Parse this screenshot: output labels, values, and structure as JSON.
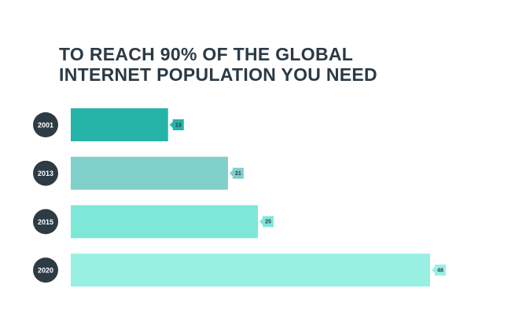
{
  "chart_data": {
    "type": "bar",
    "orientation": "horizontal",
    "title": [
      "TO REACH 90% OF THE GLOBAL",
      "INTERNET POPULATION YOU NEED"
    ],
    "categories": [
      "2001",
      "2013",
      "2015",
      "2020"
    ],
    "values": [
      13,
      21,
      25,
      48
    ],
    "colors": [
      "#26b3a8",
      "#7fcfca",
      "#7de8d8",
      "#98f0e3"
    ]
  }
}
